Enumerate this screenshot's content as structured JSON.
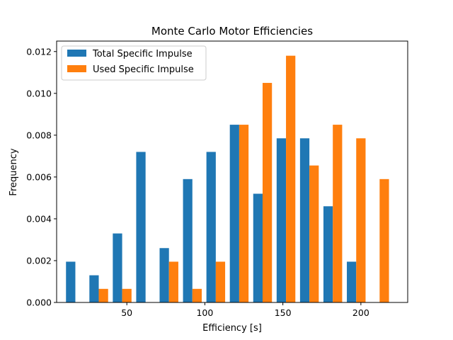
{
  "chart_data": {
    "type": "bar",
    "title": "Monte Carlo Motor Efficiencies",
    "xlabel": "Efficiency [s]",
    "ylabel": "Frequency",
    "xlim": [
      5,
      230
    ],
    "ylim": [
      0,
      0.0125
    ],
    "xticks": [
      50,
      100,
      150,
      200
    ],
    "yticks": [
      0.0,
      0.002,
      0.004,
      0.006,
      0.008,
      0.01,
      0.012
    ],
    "ytick_labels": [
      "0.000",
      "0.002",
      "0.004",
      "0.006",
      "0.008",
      "0.010",
      "0.012"
    ],
    "bin_edges": [
      9.5,
      24.5,
      39.5,
      54.5,
      69.5,
      84.5,
      99.5,
      114.5,
      129.5,
      144.5,
      159.5,
      174.5,
      189.5,
      204.5,
      219.5
    ],
    "legend_position": "upper-left",
    "grid": false,
    "series": [
      {
        "name": "Total Specific Impulse",
        "color": "#1f77b4",
        "values": [
          0.00195,
          0.0013,
          0.0033,
          0.0072,
          0.0026,
          0.0059,
          0.0072,
          0.0085,
          0.0052,
          0.00785,
          0.00785,
          0.0046,
          0.00195,
          0.0
        ]
      },
      {
        "name": "Used Specific Impulse",
        "color": "#ff7f0e",
        "values": [
          0.0,
          0.00065,
          0.00065,
          0.0,
          0.00195,
          0.00065,
          0.00195,
          0.0085,
          0.0105,
          0.0118,
          0.00655,
          0.0085,
          0.00785,
          0.0059
        ]
      }
    ]
  }
}
